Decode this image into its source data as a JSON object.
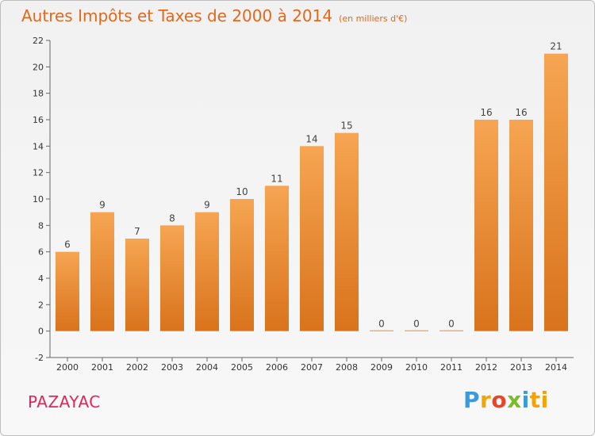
{
  "chart_data": {
    "type": "bar",
    "title": "Autres Impôts et Taxes de 2000 à 2014",
    "unit_note": "(en milliers d'€)",
    "categories": [
      "2000",
      "2001",
      "2002",
      "2003",
      "2004",
      "2005",
      "2006",
      "2007",
      "2008",
      "2009",
      "2010",
      "2011",
      "2012",
      "2013",
      "2014"
    ],
    "values": [
      6,
      9,
      7,
      8,
      9,
      10,
      11,
      14,
      15,
      0,
      0,
      0,
      16,
      16,
      21
    ],
    "ylim": [
      -2,
      22
    ],
    "yticks": [
      -2,
      0,
      2,
      4,
      6,
      8,
      10,
      12,
      14,
      16,
      18,
      20,
      22
    ],
    "grid": false,
    "bar_color_top": "#f6a552",
    "bar_color_bottom": "#d9731c"
  },
  "footer": {
    "town": "PAZAYAC",
    "town_color": "#e0265a"
  },
  "logo": {
    "text": "Proxiti",
    "letters": [
      "P",
      "r",
      "o",
      "x",
      "i",
      "ti"
    ]
  }
}
